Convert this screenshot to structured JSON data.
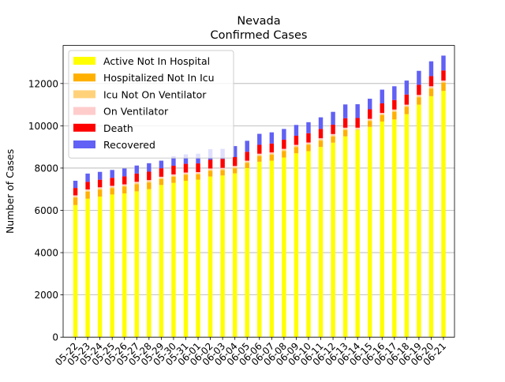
{
  "chart_data": {
    "type": "bar",
    "stacked": true,
    "title_line1": "Nevada",
    "title_line2": "Confirmed Cases",
    "xlabel": "",
    "ylabel": "Number of Cases",
    "ylim": [
      0,
      13800
    ],
    "yticks": [
      0,
      2000,
      4000,
      6000,
      8000,
      10000,
      12000
    ],
    "grid": "horizontal",
    "legend_position": "top-left",
    "categories": [
      "05-22",
      "05-23",
      "05-24",
      "05-25",
      "05-26",
      "05-27",
      "05-28",
      "05-29",
      "05-30",
      "05-31",
      "06-01",
      "06-02",
      "06-03",
      "06-04",
      "06-05",
      "06-06",
      "06-07",
      "06-08",
      "06-09",
      "06-10",
      "06-11",
      "06-12",
      "06-13",
      "06-14",
      "06-15",
      "06-16",
      "06-17",
      "06-18",
      "06-19",
      "06-20",
      "06-21"
    ],
    "series": [
      {
        "name": "Active Not In Hospital",
        "color": "#ffff00",
        "values": [
          6250,
          6550,
          6650,
          6750,
          6800,
          6900,
          7000,
          7200,
          7300,
          7400,
          7450,
          7600,
          7650,
          7750,
          8000,
          8300,
          8350,
          8500,
          8700,
          8800,
          9000,
          9200,
          9500,
          9800,
          9950,
          10200,
          10300,
          10550,
          11000,
          11400,
          11650
        ]
      },
      {
        "name": "Hospitalized Not In Icu",
        "color": "#ffb000",
        "values": [
          350,
          330,
          330,
          300,
          320,
          340,
          320,
          280,
          290,
          280,
          250,
          270,
          250,
          240,
          240,
          270,
          280,
          300,
          290,
          300,
          300,
          300,
          300,
          0,
          270,
          300,
          360,
          340,
          350,
          360,
          380
        ]
      },
      {
        "name": "Icu Not On Ventilator",
        "color": "#ffd27a",
        "values": [
          60,
          60,
          60,
          60,
          60,
          60,
          60,
          60,
          60,
          60,
          60,
          60,
          60,
          60,
          60,
          60,
          60,
          60,
          60,
          60,
          60,
          60,
          60,
          60,
          60,
          60,
          60,
          60,
          60,
          60,
          60
        ]
      },
      {
        "name": "On Ventilator",
        "color": "#ffcccc",
        "values": [
          50,
          50,
          50,
          50,
          50,
          50,
          50,
          50,
          50,
          50,
          50,
          50,
          50,
          50,
          50,
          50,
          50,
          50,
          50,
          50,
          50,
          50,
          50,
          50,
          50,
          50,
          50,
          50,
          50,
          50,
          50
        ]
      },
      {
        "name": "Death",
        "color": "#ff0000",
        "values": [
          350,
          360,
          360,
          380,
          380,
          390,
          400,
          400,
          410,
          410,
          410,
          410,
          420,
          420,
          420,
          420,
          420,
          430,
          430,
          440,
          440,
          440,
          450,
          460,
          450,
          450,
          450,
          480,
          480,
          480,
          480
        ]
      },
      {
        "name": "Recovered",
        "color": "#6161f5",
        "values": [
          340,
          390,
          370,
          370,
          370,
          380,
          400,
          360,
          450,
          450,
          460,
          500,
          480,
          520,
          520,
          520,
          530,
          510,
          510,
          520,
          550,
          610,
          650,
          650,
          500,
          650,
          650,
          660,
          660,
          700,
          700
        ]
      }
    ]
  }
}
